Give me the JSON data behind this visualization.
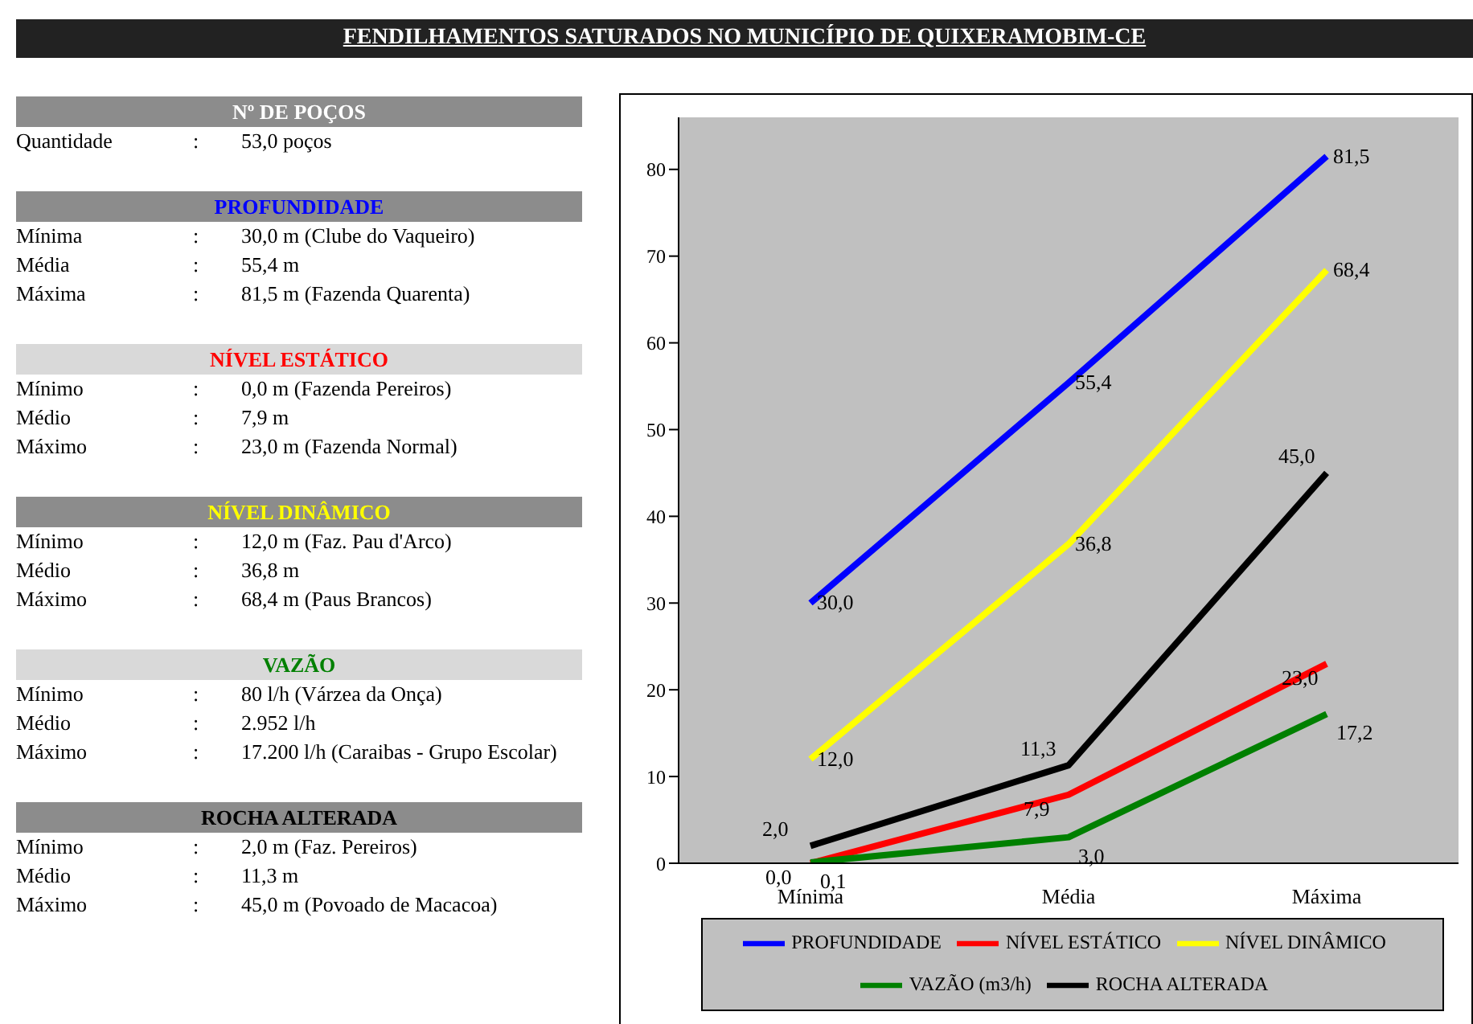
{
  "chart_data": [
    {
      "type": "line",
      "title": "FENDILHAMENTOS SATURADOS NO MUNICÍPIO DE QUIXERAMOBIM-CE",
      "categories": [
        "Mínima",
        "Média",
        "Máxima"
      ],
      "ylim": [
        0,
        86
      ],
      "yticks": [
        0,
        10,
        20,
        30,
        40,
        50,
        60,
        70,
        80
      ],
      "legend": "bottom",
      "marker": "none",
      "line_style": "solid",
      "series": [
        {
          "name": "PROFUNDIDADE",
          "color": "#0000ff",
          "values": [
            30.0,
            55.4,
            81.5
          ],
          "value_labels": [
            "30,0",
            "55,4",
            "81,5"
          ]
        },
        {
          "name": "NÍVEL ESTÁTICO",
          "color": "#ff0000",
          "values": [
            0.0,
            7.9,
            23.0
          ],
          "value_labels": [
            "0,0",
            "7,9",
            "23,0"
          ]
        },
        {
          "name": "NÍVEL DINÂMICO",
          "color": "#ffff00",
          "values": [
            12.0,
            36.8,
            68.4
          ],
          "value_labels": [
            "12,0",
            "36,8",
            "68,4"
          ]
        },
        {
          "name": "VAZÃO (m3/h)",
          "color": "#008000",
          "values": [
            0.1,
            3.0,
            17.2
          ],
          "value_labels": [
            "0,1",
            "3,0",
            "17,2"
          ]
        },
        {
          "name": "ROCHA ALTERADA",
          "color": "#000000",
          "values": [
            2.0,
            11.3,
            45.0
          ],
          "value_labels": [
            "2,0",
            "11,3",
            "45,0"
          ]
        }
      ]
    },
    {
      "type": "other",
      "title": "Nº DE POÇOS",
      "color": "#ffffff",
      "annotations": [
        "Quantidade : 53,0 poços"
      ]
    },
    {
      "type": "other",
      "title": "PROFUNDIDADE",
      "color": "#0000ff",
      "annotations": [
        "Mínima : 30,0 m (Clube do Vaqueiro)",
        "Média : 55,4 m",
        "Máxima : 81,5 m (Fazenda Quarenta)"
      ]
    },
    {
      "type": "other",
      "title": "NÍVEL ESTÁTICO",
      "color": "#ff0000",
      "annotations": [
        "Mínimo : 0,0 m (Fazenda Pereiros)",
        "Médio : 7,9 m",
        "Máximo : 23,0 m (Fazenda Normal)"
      ]
    },
    {
      "type": "other",
      "title": "NÍVEL DINÂMICO",
      "color": "#ffff00",
      "annotations": [
        "Mínimo : 12,0 m (Faz. Pau d'Arco)",
        "Médio : 36,8 m",
        "Máximo : 68,4 m (Paus Brancos)"
      ]
    },
    {
      "type": "other",
      "title": "VAZÃO",
      "color": "#008000",
      "annotations": [
        "Mínimo : 80 l/h (Várzea da Onça)",
        "Médio : 2.952 l/h",
        "Máximo : 17.200 l/h (Caraibas - Grupo Escolar)"
      ]
    },
    {
      "type": "other",
      "title": "ROCHA ALTERADA",
      "color": "#000000",
      "annotations": [
        "Mínimo : 2,0 m (Faz. Pereiros)",
        "Médio : 11,3 m",
        "Máximo : 45,0 m (Povoado de Macacoa)"
      ]
    }
  ]
}
